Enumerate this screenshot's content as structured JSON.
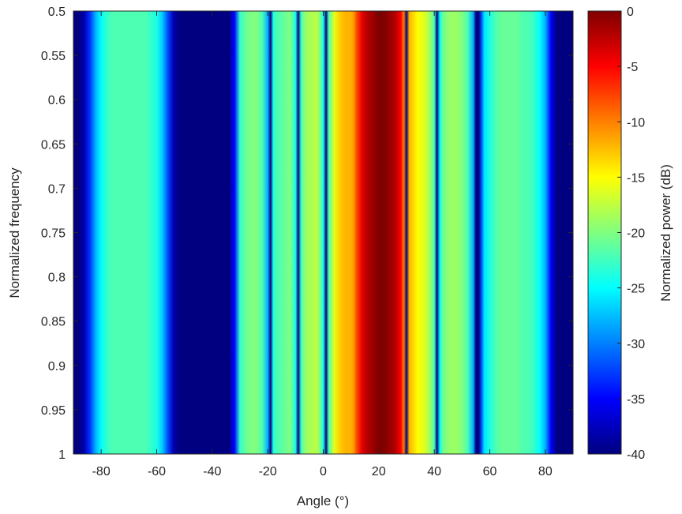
{
  "chart_data": {
    "type": "heatmap",
    "title": "",
    "xlabel": "Angle (°)",
    "ylabel": "Normalized frequency",
    "colorbar_label": "Normalized power (dB)",
    "xlim": [
      -90,
      90
    ],
    "ylim": [
      0.5,
      1
    ],
    "clim": [
      -40,
      0
    ],
    "colormap": "jet",
    "x_ticks": [
      -80,
      -60,
      -40,
      -20,
      0,
      20,
      40,
      60,
      80
    ],
    "y_ticks": [
      0.5,
      0.55,
      0.6,
      0.65,
      0.7,
      0.75,
      0.8,
      0.85,
      0.9,
      0.95,
      1
    ],
    "y_tick_labels": [
      "0.5",
      "0.55",
      "0.6",
      "0.65",
      "0.7",
      "0.75",
      "0.8",
      "0.85",
      "0.9",
      "0.95",
      "1"
    ],
    "colorbar_ticks": [
      0,
      -5,
      -10,
      -15,
      -20,
      -25,
      -30,
      -35,
      -40
    ],
    "profile": {
      "angle": [
        -90,
        -88,
        -86,
        -84,
        -82,
        -80,
        -78,
        -76,
        -74,
        -72,
        -70,
        -68,
        -66,
        -64,
        -62,
        -60,
        -58,
        -56,
        -54,
        -52,
        -50,
        -48,
        -46,
        -44,
        -42,
        -40,
        -38,
        -36,
        -34,
        -32,
        -30,
        -28,
        -26,
        -24,
        -22,
        -20,
        -19,
        -18,
        -17,
        -16,
        -14,
        -12,
        -10,
        -9,
        -8,
        -7,
        -6,
        -4,
        -2,
        0,
        1,
        2,
        3,
        4,
        6,
        8,
        10,
        11,
        12,
        14,
        16,
        18,
        20,
        22,
        24,
        26,
        28,
        29,
        30,
        31,
        32,
        34,
        36,
        38,
        40,
        41,
        42,
        43,
        44,
        46,
        48,
        50,
        52,
        54,
        55,
        56,
        57,
        58,
        60,
        62,
        64,
        66,
        68,
        70,
        72,
        74,
        76,
        78,
        80,
        82,
        84,
        86,
        88,
        90
      ],
      "power_db": [
        -40,
        -40,
        -38,
        -33,
        -28,
        -25,
        -23,
        -22,
        -22,
        -22,
        -22,
        -22,
        -22,
        -22,
        -23,
        -24,
        -27,
        -32,
        -38,
        -40,
        -40,
        -40,
        -40,
        -40,
        -40,
        -40,
        -40,
        -40,
        -40,
        -35,
        -23,
        -21,
        -20,
        -20,
        -22,
        -28,
        -40,
        -24,
        -22,
        -22,
        -21,
        -20,
        -24,
        -40,
        -23,
        -20,
        -19,
        -18,
        -18,
        -24,
        -40,
        -22,
        -19,
        -16,
        -13,
        -12,
        -12,
        -11,
        -8,
        -4,
        -2,
        -1,
        0,
        0,
        -1,
        -2,
        -5,
        -10,
        -40,
        -12,
        -13,
        -15,
        -16,
        -18,
        -22,
        -40,
        -25,
        -21,
        -20,
        -19,
        -19,
        -20,
        -22,
        -28,
        -40,
        -40,
        -32,
        -26,
        -24,
        -22,
        -21,
        -21,
        -21,
        -21,
        -22,
        -22,
        -23,
        -25,
        -28,
        -35,
        -40,
        -40,
        -40,
        -40
      ]
    }
  }
}
